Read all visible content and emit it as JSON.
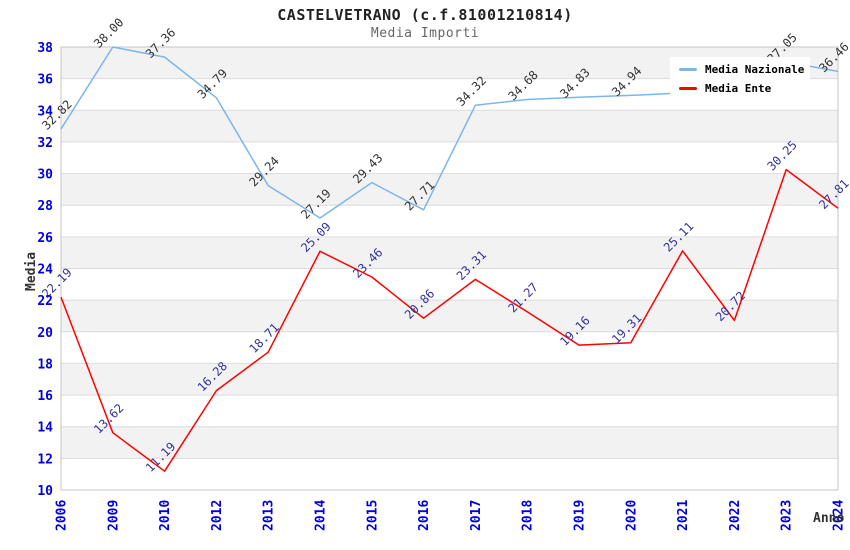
{
  "header": {
    "title": "CASTELVETRANO (c.f.81001210814)",
    "subtitle": "Media Importi"
  },
  "axes": {
    "y_title": "Media",
    "x_title": "Anno"
  },
  "legend": {
    "items": [
      {
        "label": "Media Nazionale",
        "color": "#7cb5ec"
      },
      {
        "label": "Media Ente",
        "color": "#ff0000"
      }
    ]
  },
  "colors": {
    "tick_label": "#0000dd",
    "band": "#f2f2f2",
    "gridline": "#dcdcdc",
    "plot_border": "#c6c6c6",
    "series_blue": "#7cb5ec",
    "series_red": "#ff0000",
    "label_blue_series": "#333333",
    "label_red_series": "#333399"
  },
  "chart_data": {
    "type": "line",
    "title": "CASTELVETRANO (c.f.81001210814)",
    "subtitle": "Media Importi",
    "xlabel": "Anno",
    "ylabel": "Media",
    "ylim": [
      10,
      38
    ],
    "ytick_step": 2,
    "grid": "horizontal-bands-alternating",
    "legend_position": "top-right-inside",
    "categories": [
      "2006",
      "2009",
      "2010",
      "2012",
      "2013",
      "2014",
      "2015",
      "2016",
      "2017",
      "2018",
      "2019",
      "2020",
      "2021",
      "2022",
      "2023",
      "2024"
    ],
    "series": [
      {
        "name": "Media Nazionale",
        "color": "#7cb5ec",
        "label_color": "#333333",
        "values": [
          32.82,
          38.0,
          37.36,
          34.79,
          29.24,
          27.19,
          29.43,
          27.71,
          34.32,
          34.68,
          34.83,
          34.94,
          35.1,
          35.8,
          37.05,
          36.46
        ],
        "point_labels": [
          "32.82",
          "38.00",
          "37.36",
          "34.79",
          "29.24",
          "27.19",
          "29.43",
          "27.71",
          "34.32",
          "34.68",
          "34.83",
          "34.94",
          "",
          "",
          "37.05",
          "36.46"
        ]
      },
      {
        "name": "Media Ente",
        "color": "#ff0000",
        "label_color": "#333399",
        "values": [
          22.19,
          13.62,
          11.19,
          16.28,
          18.71,
          25.09,
          23.46,
          20.86,
          23.31,
          21.27,
          19.16,
          19.31,
          25.11,
          20.72,
          30.25,
          27.81
        ],
        "point_labels": [
          "22.19",
          "13.62",
          "11.19",
          "16.28",
          "18.71",
          "25.09",
          "23.46",
          "20.86",
          "23.31",
          "21.27",
          "19.16",
          "19.31",
          "25.11",
          "20.72",
          "30.25",
          "27.81"
        ]
      }
    ]
  }
}
